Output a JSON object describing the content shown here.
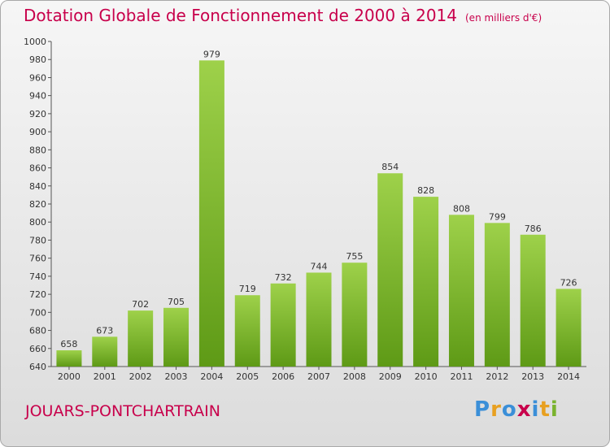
{
  "chart_data": {
    "type": "bar",
    "title": "Dotation Globale de Fonctionnement de 2000 à 2014",
    "subtitle": "(en milliers d'€)",
    "categories": [
      "2000",
      "2001",
      "2002",
      "2003",
      "2004",
      "2005",
      "2006",
      "2007",
      "2008",
      "2009",
      "2010",
      "2011",
      "2012",
      "2013",
      "2014"
    ],
    "values": [
      658,
      673,
      702,
      705,
      979,
      719,
      732,
      744,
      755,
      854,
      828,
      808,
      799,
      786,
      726
    ],
    "ylim": [
      640,
      1000
    ],
    "yticks": [
      640,
      660,
      680,
      700,
      720,
      740,
      760,
      780,
      800,
      820,
      840,
      860,
      880,
      900,
      920,
      940,
      960,
      980,
      1000
    ],
    "grid": false,
    "legend": "none",
    "colors": {
      "bar_top": "#9ed14a",
      "bar_bottom": "#5e9a16",
      "title": "#c8004b"
    }
  },
  "commune": "JOUARS-PONTCHARTRAIN",
  "logo": {
    "text": "Proxiti",
    "letters": [
      {
        "ch": "P",
        "color": "#3b8fd8"
      },
      {
        "ch": "r",
        "color": "#e8a020"
      },
      {
        "ch": "o",
        "color": "#3b8fd8"
      },
      {
        "ch": "x",
        "color": "#c8004b"
      },
      {
        "ch": "i",
        "color": "#3b8fd8"
      },
      {
        "ch": "t",
        "color": "#e8a020"
      },
      {
        "ch": "i",
        "color": "#7ab32e"
      }
    ]
  }
}
